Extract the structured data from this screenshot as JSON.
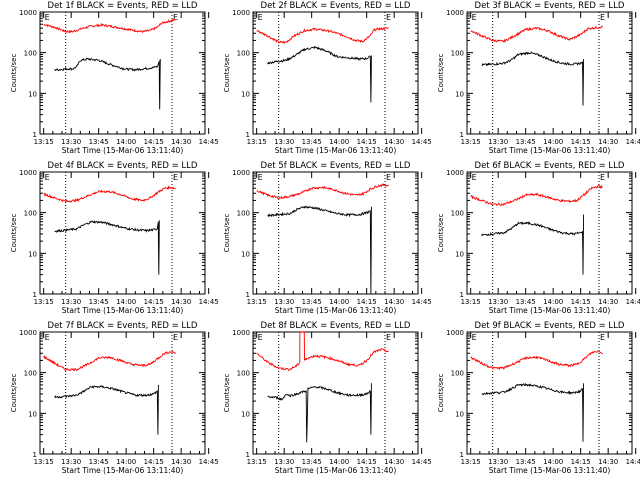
{
  "chart_data": [
    {
      "type": "line",
      "title": "Det 1f BLACK = Events, RED = LLD",
      "xlabel": "Start Time (15-Mar-06 13:11:40)",
      "ylabel": "Counts/sec",
      "xticks": [
        "13:15",
        "13:30",
        "13:45",
        "14:00",
        "14:15",
        "14:30",
        "14:45"
      ],
      "yticks": [
        "1",
        "10",
        "100",
        "1000"
      ],
      "ylim": [
        1,
        1000
      ],
      "yscale": "log",
      "markers": [
        "E",
        "E"
      ],
      "series": [
        {
          "color": "#ff0000",
          "x": [
            0,
            6,
            12,
            16,
            20,
            26,
            32,
            40,
            48,
            54,
            58,
            62,
            64,
            66,
            72
          ],
          "values": [
            500,
            420,
            330,
            330,
            380,
            450,
            480,
            420,
            360,
            330,
            350,
            420,
            520,
            560,
            650
          ]
        },
        {
          "color": "#000000",
          "x": [
            6,
            8,
            12,
            16,
            18,
            20,
            24,
            30,
            36,
            44,
            50,
            54,
            58,
            62,
            63,
            63.3,
            63.6
          ],
          "values": [
            38,
            38,
            40,
            40,
            45,
            65,
            70,
            65,
            52,
            40,
            38,
            40,
            42,
            45,
            60,
            4,
            70
          ]
        }
      ]
    },
    {
      "type": "line",
      "title": "Det 2f BLACK = Events, RED = LLD",
      "xlabel": "Start Time (15-Mar-06 13:11:40)",
      "ylabel": "Counts/sec",
      "xticks": [
        "13:15",
        "13:30",
        "13:45",
        "14:00",
        "14:15",
        "14:30",
        "14:45"
      ],
      "yticks": [
        "1",
        "10",
        "100",
        "1000"
      ],
      "ylim": [
        1,
        1000
      ],
      "yscale": "log",
      "markers": [
        "E",
        "E"
      ],
      "series": [
        {
          "color": "#ff0000",
          "x": [
            0,
            6,
            12,
            16,
            20,
            26,
            32,
            40,
            48,
            54,
            58,
            62,
            64,
            66,
            72
          ],
          "values": [
            350,
            260,
            180,
            180,
            250,
            350,
            380,
            340,
            260,
            200,
            190,
            260,
            360,
            380,
            400
          ]
        },
        {
          "color": "#000000",
          "x": [
            6,
            10,
            16,
            20,
            26,
            32,
            38,
            44,
            50,
            56,
            60,
            62,
            62.3,
            62.6
          ],
          "values": [
            55,
            60,
            65,
            80,
            120,
            135,
            110,
            80,
            75,
            70,
            72,
            80,
            6,
            85
          ]
        }
      ]
    },
    {
      "type": "line",
      "title": "Det 3f BLACK = Events, RED = LLD",
      "xlabel": "Start Time (15-Mar-06 13:11:40)",
      "ylabel": "Counts/sec",
      "xticks": [
        "13:15",
        "13:30",
        "13:45",
        "14:00",
        "14:15",
        "14:30",
        "14:45"
      ],
      "yticks": [
        "1",
        "10",
        "100",
        "1000"
      ],
      "ylim": [
        1,
        1000
      ],
      "yscale": "log",
      "markers": [
        "E",
        "E"
      ],
      "series": [
        {
          "color": "#ff0000",
          "x": [
            0,
            6,
            12,
            18,
            24,
            30,
            36,
            42,
            48,
            54,
            60,
            64,
            66,
            72
          ],
          "values": [
            350,
            260,
            200,
            190,
            260,
            370,
            400,
            350,
            260,
            210,
            280,
            390,
            400,
            430
          ]
        },
        {
          "color": "#000000",
          "x": [
            6,
            12,
            18,
            22,
            26,
            32,
            38,
            44,
            50,
            56,
            60,
            61,
            61.3,
            61.6
          ],
          "values": [
            50,
            52,
            55,
            65,
            90,
            100,
            85,
            65,
            55,
            52,
            55,
            60,
            5,
            70
          ]
        }
      ]
    },
    {
      "type": "line",
      "title": "Det 4f BLACK = Events, RED = LLD",
      "xlabel": "Start Time (15-Mar-06 13:11:40)",
      "ylabel": "Counts/sec",
      "xticks": [
        "13:15",
        "13:30",
        "13:45",
        "14:00",
        "14:15",
        "14:30",
        "14:45"
      ],
      "yticks": [
        "1",
        "10",
        "100",
        "1000"
      ],
      "ylim": [
        1,
        1000
      ],
      "yscale": "log",
      "markers": [
        "E",
        "E"
      ],
      "series": [
        {
          "color": "#ff0000",
          "x": [
            0,
            6,
            12,
            18,
            24,
            30,
            36,
            42,
            48,
            54,
            58,
            62,
            66,
            70,
            72
          ],
          "values": [
            290,
            230,
            190,
            200,
            260,
            330,
            330,
            280,
            220,
            200,
            230,
            310,
            400,
            420,
            380
          ]
        },
        {
          "color": "#000000",
          "x": [
            6,
            12,
            18,
            22,
            26,
            32,
            38,
            44,
            50,
            56,
            60,
            62,
            62.5,
            62.8,
            63.1
          ],
          "values": [
            35,
            37,
            40,
            50,
            60,
            58,
            50,
            42,
            38,
            36,
            38,
            40,
            60,
            3,
            65
          ]
        }
      ]
    },
    {
      "type": "line",
      "title": "Det 5f BLACK = Events, RED = LLD",
      "xlabel": "Start Time (15-Mar-06 13:11:40)",
      "ylabel": "Counts/sec",
      "xticks": [
        "13:15",
        "13:30",
        "13:45",
        "14:00",
        "14:15",
        "14:30",
        "14:45"
      ],
      "yticks": [
        "1",
        "10",
        "100",
        "1000"
      ],
      "ylim": [
        1,
        1000
      ],
      "yscale": "log",
      "markers": [
        "E",
        "E"
      ],
      "series": [
        {
          "color": "#ff0000",
          "x": [
            0,
            6,
            12,
            18,
            24,
            30,
            36,
            42,
            48,
            54,
            58,
            62,
            66,
            70,
            72
          ],
          "values": [
            350,
            270,
            230,
            250,
            300,
            400,
            420,
            370,
            300,
            270,
            290,
            380,
            460,
            480,
            460
          ]
        },
        {
          "color": "#000000",
          "x": [
            6,
            12,
            18,
            22,
            26,
            32,
            38,
            44,
            50,
            56,
            60,
            62,
            62.3,
            62.6
          ],
          "values": [
            85,
            90,
            95,
            120,
            140,
            130,
            110,
            95,
            88,
            90,
            100,
            110,
            1,
            140
          ]
        }
      ]
    },
    {
      "type": "line",
      "title": "Det 6f BLACK = Events, RED = LLD",
      "xlabel": "Start Time (15-Mar-06 13:11:40)",
      "ylabel": "Counts/sec",
      "xticks": [
        "13:15",
        "13:30",
        "13:45",
        "14:00",
        "14:15",
        "14:30",
        "14:45"
      ],
      "yticks": [
        "1",
        "10",
        "100",
        "1000"
      ],
      "ylim": [
        1,
        1000
      ],
      "yscale": "log",
      "markers": [
        "E",
        "E"
      ],
      "series": [
        {
          "color": "#ff0000",
          "x": [
            0,
            6,
            12,
            18,
            24,
            30,
            36,
            42,
            48,
            54,
            58,
            62,
            66,
            70,
            72
          ],
          "values": [
            250,
            200,
            160,
            160,
            200,
            270,
            280,
            240,
            200,
            190,
            200,
            280,
            400,
            450,
            420
          ]
        },
        {
          "color": "#000000",
          "x": [
            6,
            12,
            18,
            22,
            26,
            32,
            38,
            44,
            50,
            56,
            60,
            61,
            61.3,
            61.6
          ],
          "values": [
            28,
            30,
            32,
            40,
            55,
            55,
            48,
            38,
            32,
            30,
            32,
            35,
            3,
            90
          ]
        }
      ]
    },
    {
      "type": "line",
      "title": "Det 7f BLACK = Events, RED = LLD",
      "xlabel": "Start Time (15-Mar-06 13:11:40)",
      "ylabel": "Counts/sec",
      "xticks": [
        "13:15",
        "13:30",
        "13:45",
        "14:00",
        "14:15",
        "14:30",
        "14:45"
      ],
      "yticks": [
        "1",
        "10",
        "100",
        "1000"
      ],
      "ylim": [
        1,
        1000
      ],
      "yscale": "log",
      "markers": [
        "E",
        "E"
      ],
      "series": [
        {
          "color": "#ff0000",
          "x": [
            0,
            6,
            12,
            18,
            24,
            30,
            36,
            42,
            48,
            54,
            58,
            62,
            66,
            70,
            72
          ],
          "values": [
            250,
            170,
            120,
            120,
            160,
            230,
            240,
            200,
            160,
            150,
            160,
            220,
            300,
            330,
            300
          ]
        },
        {
          "color": "#000000",
          "x": [
            6,
            12,
            18,
            22,
            26,
            32,
            38,
            44,
            50,
            56,
            60,
            62,
            62.3,
            62.6
          ],
          "values": [
            25,
            26,
            28,
            35,
            45,
            45,
            40,
            33,
            28,
            28,
            30,
            35,
            3,
            50
          ]
        }
      ]
    },
    {
      "type": "line",
      "title": "Det 8f BLACK = Events, RED = LLD",
      "xlabel": "Start Time (15-Mar-06 13:11:40)",
      "ylabel": "Counts/sec",
      "xticks": [
        "13:15",
        "13:30",
        "13:45",
        "14:00",
        "14:15",
        "14:30",
        "14:45"
      ],
      "yticks": [
        "1",
        "10",
        "100",
        "1000"
      ],
      "ylim": [
        1,
        1000
      ],
      "yscale": "log",
      "markers": [
        "E",
        "E"
      ],
      "series": [
        {
          "color": "#ff0000",
          "x": [
            0,
            6,
            12,
            18,
            22,
            23.5,
            23.6,
            26,
            26.1,
            28,
            32,
            38,
            44,
            50,
            56,
            60,
            64,
            68,
            72
          ],
          "values": [
            300,
            180,
            130,
            120,
            150,
            180,
            1000,
            1000,
            200,
            230,
            260,
            240,
            200,
            160,
            150,
            200,
            320,
            370,
            330
          ]
        },
        {
          "color": "#000000",
          "x": [
            6,
            10,
            14,
            16,
            18,
            22,
            26,
            27,
            27.3,
            28,
            32,
            38,
            44,
            50,
            56,
            60,
            62,
            62.3,
            62.6
          ],
          "values": [
            25,
            25,
            22,
            30,
            27,
            30,
            35,
            35,
            2,
            40,
            45,
            40,
            32,
            28,
            28,
            30,
            35,
            3,
            55
          ]
        }
      ]
    },
    {
      "type": "line",
      "title": "Det 9f BLACK = Events, RED = LLD",
      "xlabel": "Start Time (15-Mar-06 13:11:40)",
      "ylabel": "Counts/sec",
      "xticks": [
        "13:15",
        "13:30",
        "13:45",
        "14:00",
        "14:15",
        "14:30",
        "14:45"
      ],
      "yticks": [
        "1",
        "10",
        "100",
        "1000"
      ],
      "ylim": [
        1,
        1000
      ],
      "yscale": "log",
      "markers": [
        "E",
        "E"
      ],
      "series": [
        {
          "color": "#ff0000",
          "x": [
            0,
            6,
            12,
            18,
            24,
            30,
            36,
            42,
            48,
            54,
            58,
            62,
            66,
            70,
            72
          ],
          "values": [
            240,
            170,
            130,
            130,
            170,
            230,
            240,
            200,
            160,
            150,
            160,
            220,
            310,
            340,
            300
          ]
        },
        {
          "color": "#000000",
          "x": [
            6,
            12,
            18,
            22,
            26,
            32,
            38,
            44,
            50,
            56,
            60,
            61,
            61.3,
            61.6
          ],
          "values": [
            30,
            32,
            33,
            40,
            50,
            50,
            45,
            38,
            33,
            32,
            35,
            40,
            2,
            55
          ]
        }
      ]
    }
  ]
}
